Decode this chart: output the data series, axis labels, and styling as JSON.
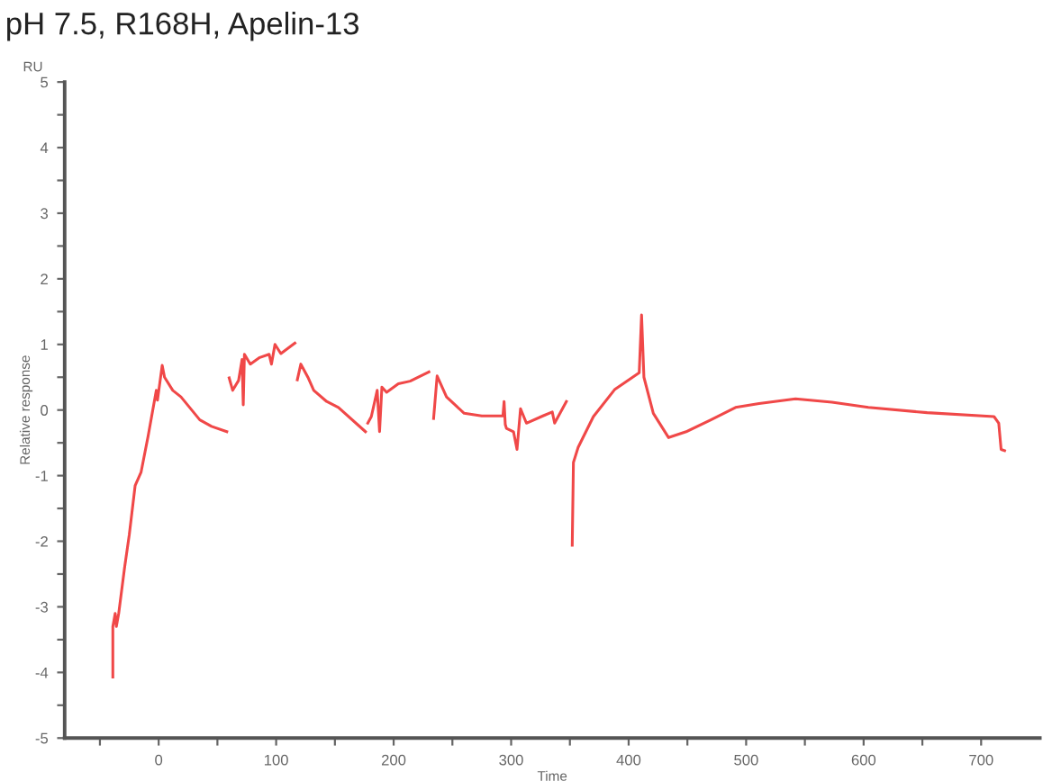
{
  "chart_data": {
    "type": "line",
    "title": "pH 7.5, R168H, Apelin-13",
    "xlabel": "Time",
    "ylabel": "Relative response",
    "annotations": [
      "RU"
    ],
    "xlim": [
      -80,
      750
    ],
    "ylim": [
      -5,
      5
    ],
    "xticks": [
      {
        "value": -50,
        "label": null
      },
      0,
      {
        "value": 50,
        "label": null
      },
      100,
      {
        "value": 150,
        "label": null
      },
      200,
      {
        "value": 250,
        "label": null
      },
      300,
      {
        "value": 350,
        "label": null
      },
      400,
      {
        "value": 450,
        "label": null
      },
      500,
      {
        "value": 550,
        "label": null
      },
      600,
      {
        "value": 650,
        "label": null
      },
      700
    ],
    "yticks": [
      -5,
      {
        "value": -4.5,
        "label": null
      },
      -4,
      {
        "value": -3.5,
        "label": null
      },
      -3,
      {
        "value": -2.5,
        "label": null
      },
      -2,
      {
        "value": -1.5,
        "label": null
      },
      -1,
      {
        "value": -0.5,
        "label": null
      },
      0,
      {
        "value": 0.5,
        "label": null
      },
      1,
      {
        "value": 1.5,
        "label": null
      },
      2,
      {
        "value": 2.5,
        "label": null
      },
      3,
      {
        "value": 3.5,
        "label": null
      },
      4,
      {
        "value": 4.5,
        "label": null
      },
      5
    ],
    "grid": false,
    "legend": false,
    "marker": "none",
    "line_style": "solid",
    "series": [
      {
        "color": "#f04848",
        "x": [
          -39,
          -39,
          -37,
          -36,
          -34,
          -29,
          -25,
          -20,
          -15,
          -9,
          -2,
          -1,
          3,
          5,
          12,
          19,
          35,
          45,
          58,
          59,
          60,
          63,
          68,
          71,
          72,
          73,
          78,
          86,
          94,
          96,
          99,
          104,
          116,
          117,
          118,
          121,
          127,
          132,
          143,
          153,
          176,
          177,
          178,
          181,
          186,
          188,
          190,
          194,
          204,
          214,
          230,
          232,
          234,
          237,
          245,
          260,
          275,
          293,
          294,
          295,
          296,
          302,
          305,
          308,
          313,
          327,
          335,
          337,
          347,
          350,
          352,
          353,
          357,
          370,
          388,
          409,
          411,
          413,
          421,
          434,
          449,
          470,
          491,
          511,
          542,
          573,
          604,
          654,
          711,
          715,
          717,
          720
        ],
        "values": [
          -4.07,
          -3.3,
          -3.1,
          -3.3,
          -3.1,
          -2.4,
          -1.9,
          -1.15,
          -0.95,
          -0.4,
          0.3,
          0.15,
          0.68,
          0.5,
          0.3,
          0.2,
          -0.15,
          -0.25,
          -0.33,
          null,
          0.49,
          0.3,
          0.45,
          0.77,
          0.08,
          0.85,
          0.7,
          0.8,
          0.85,
          0.7,
          1.0,
          0.86,
          1.02,
          null,
          0.46,
          0.7,
          0.5,
          0.3,
          0.13,
          0.04,
          -0.33,
          null,
          -0.2,
          -0.1,
          0.3,
          -0.33,
          0.35,
          0.27,
          0.4,
          0.44,
          0.58,
          null,
          -0.13,
          0.52,
          0.2,
          -0.05,
          -0.09,
          -0.09,
          0.13,
          -0.22,
          -0.28,
          -0.33,
          -0.6,
          0.02,
          -0.2,
          -0.09,
          -0.03,
          -0.2,
          0.13,
          null,
          -2.06,
          -0.8,
          -0.57,
          -0.1,
          0.31,
          0.57,
          1.45,
          0.5,
          -0.05,
          -0.42,
          -0.33,
          -0.15,
          0.04,
          0.1,
          0.17,
          0.12,
          0.04,
          -0.04,
          -0.1,
          -0.2,
          -0.6,
          -0.62
        ]
      }
    ]
  }
}
